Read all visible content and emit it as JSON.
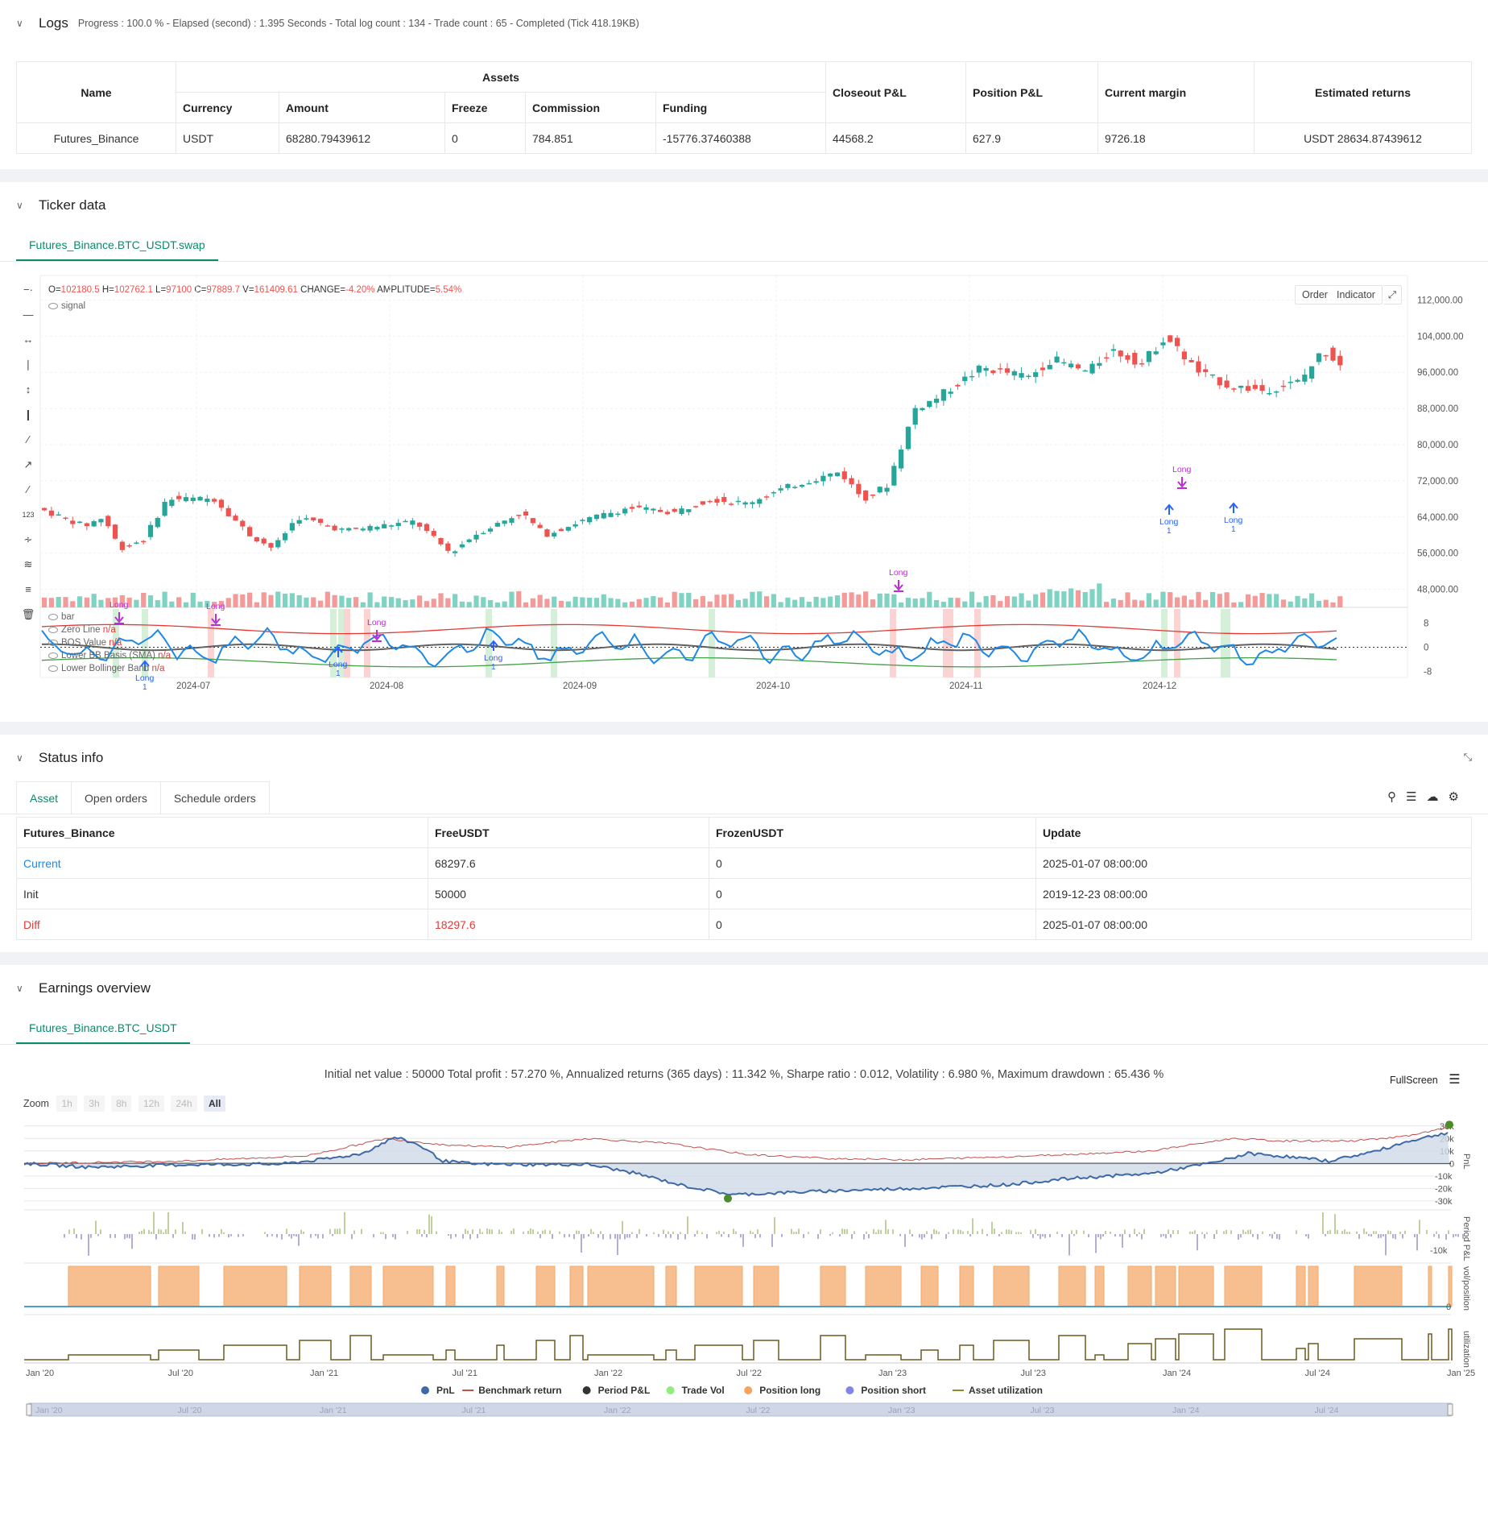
{
  "logs": {
    "title": "Logs",
    "summary": "Progress : 100.0 % - Elapsed (second) : 1.395  Seconds - Total log count : 134 - Trade count : 65 - Completed (Tick 418.19KB)",
    "headers": {
      "name": "Name",
      "assets": "Assets",
      "currency": "Currency",
      "amount": "Amount",
      "freeze": "Freeze",
      "commission": "Commission",
      "funding": "Funding",
      "closeout": "Closeout P&L",
      "position": "Position P&L",
      "margin": "Current margin",
      "returns": "Estimated returns"
    },
    "row": {
      "name": "Futures_Binance",
      "currency": "USDT",
      "amount": "68280.79439612",
      "freeze": "0",
      "commission": "784.851",
      "funding": "-15776.37460388",
      "closeout": "44568.2",
      "position": "627.9",
      "margin": "9726.18",
      "returns": "USDT 28634.87439612"
    }
  },
  "ticker": {
    "title": "Ticker data",
    "tab": "Futures_Binance.BTC_USDT.swap",
    "ohlc": {
      "o_label": "O=",
      "o": "102180.5",
      "h_label": "H=",
      "h": "102762.1",
      "l_label": "L=",
      "l": "97100",
      "c_label": "C=",
      "c": "97889.7",
      "v_label": "V=",
      "v": "161409.61",
      "chg_label": "CHANGE=",
      "chg": "-4.20%",
      "amp_label": "AMPLITUDE=",
      "amp": "5.54%"
    },
    "signal_label": "signal",
    "order_btn": "Order",
    "indicator_btn": "Indicator",
    "price_ticks": [
      "112,000.00",
      "104,000.00",
      "96,000.00",
      "88,000.00",
      "80,000.00",
      "72,000.00",
      "64,000.00",
      "56,000.00",
      "48,000.00"
    ],
    "osc_ticks": [
      "8",
      "0",
      "-8"
    ],
    "date_ticks": [
      "2024-07",
      "2024-08",
      "2024-09",
      "2024-10",
      "2024-11",
      "2024-12"
    ],
    "legend": [
      {
        "label": "bar",
        "value": ""
      },
      {
        "label": "Zero Line",
        "value": "n/a"
      },
      {
        "label": "BOS Value",
        "value": "n/a"
      },
      {
        "label": "Lower BB Basis (SMA)",
        "value": "n/a"
      },
      {
        "label": "Lower Bollinger Band",
        "value": "n/a"
      }
    ],
    "long_label": "Long",
    "long_qty": "1",
    "colors": {
      "up": "#26a69a",
      "down": "#ef5350",
      "buy": "#2962ff",
      "sell": "#b92ed6",
      "bos": "#1e88e5",
      "upper": "#e53935",
      "lower": "#43a047",
      "basis": "#616161"
    }
  },
  "status": {
    "title": "Status info",
    "tabs": [
      "Asset",
      "Open orders",
      "Schedule orders"
    ],
    "headers": [
      "Futures_Binance",
      "FreeUSDT",
      "FrozenUSDT",
      "Update"
    ],
    "rows": [
      {
        "label": "Current",
        "free": "68297.6",
        "frozen": "0",
        "update": "2025-01-07 08:00:00"
      },
      {
        "label": "Init",
        "free": "50000",
        "frozen": "0",
        "update": "2019-12-23 08:00:00"
      },
      {
        "label": "Diff",
        "free": "18297.6",
        "frozen": "0",
        "update": "2025-01-07 08:00:00"
      }
    ]
  },
  "earnings": {
    "title": "Earnings overview",
    "tab": "Futures_Binance.BTC_USDT",
    "summary": "Initial net value : 50000  Total profit : 57.270 %,  Annualized returns (365 days) : 11.342 %,  Sharpe ratio : 0.012,  Volatility : 6.980 %,  Maximum drawdown : 65.436 %",
    "fullscreen": "FullScreen",
    "zoom_label": "Zoom",
    "zoom_opts": [
      "1h",
      "3h",
      "8h",
      "12h",
      "24h",
      "All"
    ],
    "pnl_ticks": [
      "30k",
      "20k",
      "10k",
      "0",
      "-10k",
      "-20k",
      "-30k"
    ],
    "period_tick": "-10k",
    "pos_tick": "0",
    "axis_titles": [
      "PnL",
      "Period P&L",
      "vol/position",
      "utilization"
    ],
    "date_ticks": [
      "Jan '20",
      "Jul '20",
      "Jan '21",
      "Jul '21",
      "Jan '22",
      "Jul '22",
      "Jan '23",
      "Jul '23",
      "Jan '24",
      "Jul '24",
      "Jan '25"
    ],
    "nav_ticks": [
      "Jan '20",
      "Jul '20",
      "Jan '21",
      "Jul '21",
      "Jan '22",
      "Jul '22",
      "Jan '23",
      "Jul '23",
      "Jan '24",
      "Jul '24"
    ],
    "legend": [
      {
        "label": "PnL",
        "color": "#3d6aa6"
      },
      {
        "label": "Benchmark return",
        "color": "#c0504d"
      },
      {
        "label": "Period P&L",
        "color": "#333333"
      },
      {
        "label": "Trade Vol",
        "color": "#90ed7d"
      },
      {
        "label": "Position long",
        "color": "#f7a35c"
      },
      {
        "label": "Position short",
        "color": "#8085e9"
      },
      {
        "label": "Asset utilization",
        "color": "#8d8d2e"
      }
    ]
  }
}
